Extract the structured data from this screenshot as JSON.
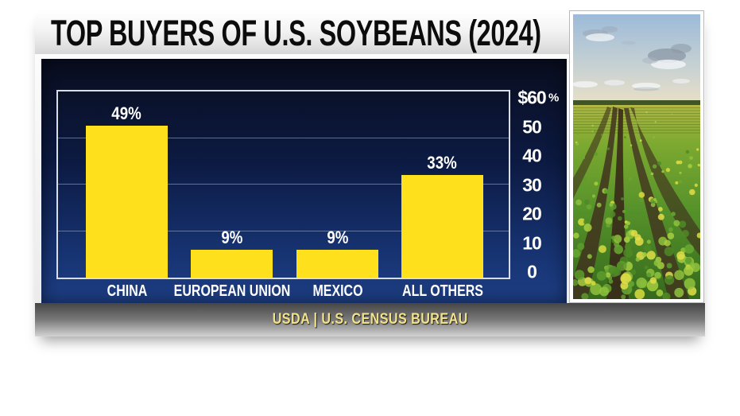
{
  "title": "TOP BUYERS OF U.S. SOYBEANS (2024)",
  "source_bar": {
    "text": "USDA | U.S. CENSUS BUREAU"
  },
  "photo": {
    "description": "Rows of green soybean plants in a farm field under a blue sky with scattered clouds"
  },
  "colors": {
    "bar": "#FFE01C",
    "panel_top": "#090D1E",
    "panel_bottom": "#1E3F86",
    "title_text": "#0C0C0C",
    "label_text": "#FFFFFF",
    "source_text": "#F2E38B"
  },
  "chart_data": {
    "type": "bar",
    "title": "TOP BUYERS OF U.S. SOYBEANS (2024)",
    "categories": [
      "CHINA",
      "EUROPEAN UNION",
      "MEXICO",
      "ALL OTHERS"
    ],
    "values": [
      49,
      9,
      9,
      33
    ],
    "value_labels": [
      "49%",
      "9%",
      "9%",
      "33%"
    ],
    "bar_color": "#FFE01C",
    "y_axis": {
      "side": "right",
      "min": 0,
      "max": 60,
      "ticks": [
        {
          "label": "$60",
          "value": 60
        },
        {
          "label": "50",
          "value": 50
        },
        {
          "label": "40",
          "value": 40
        },
        {
          "label": "30",
          "value": 30
        },
        {
          "label": "20",
          "value": 20
        },
        {
          "label": "10",
          "value": 10
        },
        {
          "label": "0",
          "value": 0
        }
      ],
      "unit_label": "%"
    },
    "gridlines": [
      15,
      30,
      45
    ],
    "legend": null,
    "grid": "horizontal-faint",
    "source": "USDA | U.S. CENSUS BUREAU",
    "background": "navy-gradient"
  }
}
